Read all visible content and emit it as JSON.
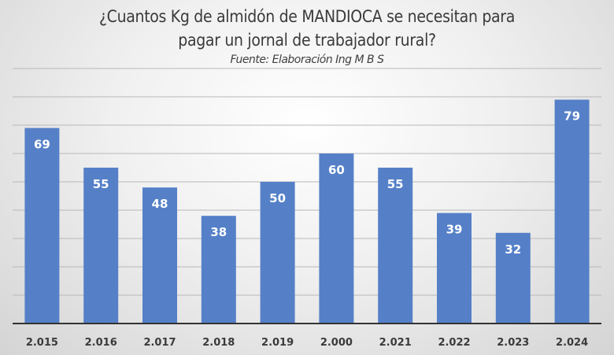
{
  "chart_data": {
    "type": "bar",
    "title_line1": "¿Cuantos Kg de almidón de MANDIOCA se necesitan para",
    "title_line2": "pagar un  jornal de trabajador rural?",
    "subtitle": "Fuente: Elaboración Ing M B S",
    "categories": [
      "2.015",
      "2.016",
      "2.017",
      "2.018",
      "2.019",
      "2.000",
      "2.021",
      "2.022",
      "2.023",
      "2.024"
    ],
    "values": [
      69,
      55,
      48,
      38,
      50,
      60,
      55,
      39,
      32,
      79
    ],
    "ylim": [
      0,
      90
    ],
    "grid_step": 10,
    "grid": true,
    "y_tick_labels_shown": false,
    "data_labels": "inside-top",
    "colors": {
      "bar": "#5580c8",
      "label": "#ffffff",
      "axis": "#333333",
      "grid": "#b8b8b8",
      "text": "#3a3a3a"
    }
  }
}
